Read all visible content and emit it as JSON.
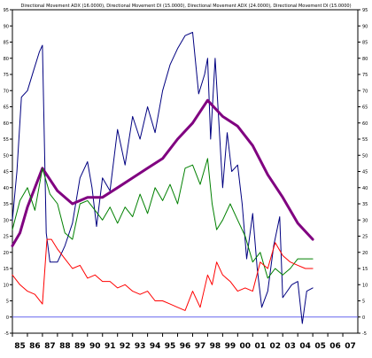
{
  "chart_data": {
    "type": "line",
    "title": "Directional Movement ADX (16.0000), Directional Movement DI (15.0000), Directional Movement ADX (24.0000), Directional Movement DI (15.0000)",
    "xlabel": "",
    "ylabel": "",
    "xlim": [
      1985,
      2008
    ],
    "ylim": [
      -5,
      95
    ],
    "x_ticks": [
      "85",
      "86",
      "87",
      "88",
      "89",
      "90",
      "91",
      "92",
      "93",
      "94",
      "95",
      "96",
      "97",
      "98",
      "99",
      "00",
      "01",
      "02",
      "03",
      "04",
      "05",
      "06",
      "07"
    ],
    "x_tick_years": [
      1985,
      1986,
      1987,
      1988,
      1989,
      1990,
      1991,
      1992,
      1993,
      1994,
      1995,
      1996,
      1997,
      1998,
      1999,
      2000,
      2001,
      2002,
      2003,
      2004,
      2005,
      2006,
      2007
    ],
    "y_ticks": [
      -5,
      0,
      5,
      10,
      15,
      20,
      25,
      30,
      35,
      40,
      45,
      50,
      55,
      60,
      65,
      70,
      75,
      80,
      85,
      90,
      95
    ],
    "grid": false,
    "background_color": "#ffffff",
    "zero_line": {
      "y": 0,
      "color": "#6666ee"
    },
    "series": [
      {
        "color": "#000080",
        "stroke": 1,
        "x": [
          1985,
          1985.3,
          1985.6,
          1986,
          1986.4,
          1986.8,
          1987,
          1987.25,
          1987.5,
          1988,
          1988.5,
          1989,
          1989.5,
          1990,
          1990.3,
          1990.6,
          1991,
          1991.5,
          1992,
          1992.5,
          1993,
          1993.5,
          1994,
          1994.5,
          1995,
          1995.5,
          1996,
          1996.5,
          1997,
          1997.4,
          1997.8,
          1998,
          1998.2,
          1998.5,
          1999,
          1999.3,
          1999.6,
          2000,
          2000.3,
          2000.6,
          2001,
          2001.3,
          2001.6,
          2002,
          2002.4,
          2002.8,
          2003,
          2003.3,
          2003.6,
          2004,
          2004.3,
          2004.6,
          2005
        ],
        "y": [
          30,
          45,
          68,
          70,
          76,
          82,
          84,
          26,
          17,
          17,
          22,
          29,
          43,
          48,
          40,
          28,
          43,
          39,
          58,
          47,
          62,
          55,
          65,
          57,
          70,
          78,
          83,
          87,
          88,
          69,
          75,
          80,
          55,
          80,
          40,
          57,
          45,
          47,
          35,
          18,
          32,
          15,
          3,
          8,
          22,
          31,
          6,
          8,
          10,
          11,
          -2,
          8,
          9
        ]
      },
      {
        "color": "#800080",
        "stroke": 3,
        "x": [
          1985,
          1985.5,
          1986,
          1987,
          1988,
          1989,
          1990,
          1991,
          1992,
          1993,
          1994,
          1995,
          1996,
          1997,
          1998,
          1999,
          2000,
          2001,
          2002,
          2003,
          2004,
          2005
        ],
        "y": [
          22,
          26,
          34,
          46,
          39,
          35,
          37,
          37,
          40,
          43,
          46,
          49,
          55,
          60,
          67,
          62,
          59,
          53,
          44,
          37,
          29,
          24
        ]
      },
      {
        "color": "#008000",
        "stroke": 1,
        "x": [
          1985,
          1985.5,
          1986,
          1986.5,
          1987,
          1987.5,
          1988,
          1988.5,
          1989,
          1989.5,
          1990,
          1990.5,
          1991,
          1991.5,
          1992,
          1992.5,
          1993,
          1993.5,
          1994,
          1994.5,
          1995,
          1995.5,
          1996,
          1996.5,
          1997,
          1997.5,
          1998,
          1998.3,
          1998.6,
          1999,
          1999.5,
          2000,
          2000.5,
          2001,
          2001.5,
          2002,
          2002.5,
          2003,
          2003.5,
          2004,
          2005
        ],
        "y": [
          27,
          36,
          40,
          33,
          46,
          38,
          35,
          26,
          24,
          35,
          36,
          33,
          30,
          34,
          29,
          34,
          31,
          38,
          32,
          40,
          36,
          41,
          35,
          46,
          47,
          41,
          49,
          35,
          27,
          30,
          35,
          30,
          25,
          17,
          20,
          12,
          15,
          13,
          15,
          18,
          18
        ]
      },
      {
        "color": "#ff0000",
        "stroke": 1,
        "x": [
          1985,
          1985.5,
          1986,
          1986.5,
          1987,
          1987.3,
          1987.6,
          1988,
          1988.5,
          1989,
          1989.5,
          1990,
          1990.5,
          1991,
          1991.5,
          1992,
          1992.5,
          1993,
          1993.5,
          1994,
          1994.5,
          1995,
          1995.5,
          1996,
          1996.5,
          1997,
          1997.5,
          1998,
          1998.3,
          1998.6,
          1999,
          1999.5,
          2000,
          2000.5,
          2001,
          2001.5,
          2002,
          2002.5,
          2003,
          2003.5,
          2004,
          2004.5,
          2005
        ],
        "y": [
          13,
          10,
          8,
          7,
          4,
          24,
          24,
          21,
          18,
          15,
          16,
          12,
          13,
          11,
          11,
          9,
          10,
          8,
          7,
          8,
          5,
          5,
          4,
          3,
          2,
          8,
          3,
          13,
          10,
          17,
          13,
          11,
          8,
          9,
          8,
          17,
          15,
          23,
          19,
          17,
          16,
          15,
          15
        ]
      }
    ]
  }
}
